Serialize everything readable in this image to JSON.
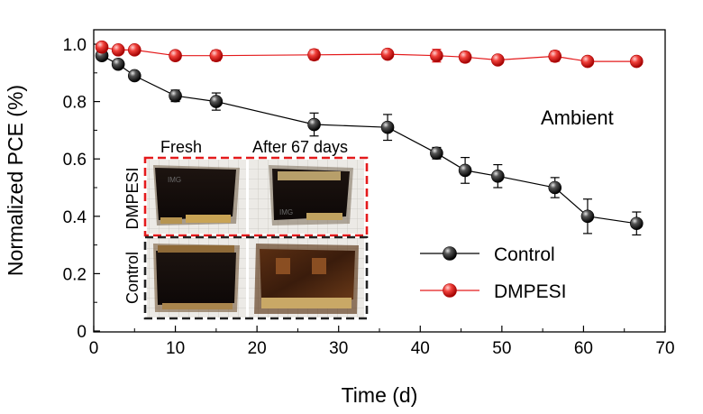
{
  "chart_data": {
    "type": "scatter",
    "xlabel": "Time (d)",
    "ylabel": "Normalized PCE (%)",
    "xlim": [
      0,
      70
    ],
    "ylim": [
      0,
      1.0
    ],
    "x_ticks": [
      "0",
      "10",
      "20",
      "30",
      "40",
      "50",
      "60",
      "70"
    ],
    "y_ticks": [
      "0",
      "0.2",
      "0.4",
      "0.6",
      "0.8",
      "1.0"
    ],
    "annotation": "Ambient",
    "legend_position": "lower-right",
    "grid": false,
    "series": [
      {
        "name": "Control",
        "color": "#000000",
        "x": [
          1,
          3,
          5,
          10,
          15,
          27,
          36,
          42,
          45.5,
          49.5,
          56.5,
          60.5,
          66.5
        ],
        "y": [
          0.96,
          0.93,
          0.89,
          0.82,
          0.8,
          0.72,
          0.71,
          0.62,
          0.56,
          0.54,
          0.5,
          0.4,
          0.375
        ],
        "err": [
          0.01,
          0.01,
          0.01,
          0.02,
          0.03,
          0.04,
          0.045,
          0.02,
          0.045,
          0.04,
          0.035,
          0.06,
          0.04
        ]
      },
      {
        "name": "DMPESI",
        "color": "#e41a1c",
        "x": [
          1,
          3,
          5,
          10,
          15,
          27,
          36,
          42,
          45.5,
          49.5,
          56.5,
          60.5,
          66.5
        ],
        "y": [
          0.99,
          0.98,
          0.98,
          0.96,
          0.96,
          0.963,
          0.965,
          0.96,
          0.955,
          0.945,
          0.958,
          0.94,
          0.94
        ],
        "err": [
          0.01,
          0.01,
          0.01,
          0.01,
          0.018,
          0.018,
          0.015,
          0.022,
          0.017,
          0.013,
          0.018,
          0.012,
          0.012
        ]
      }
    ],
    "inset": {
      "column_labels": [
        "Fresh",
        "After 67 days"
      ],
      "row_labels": [
        "DMPESI",
        "Control"
      ],
      "photo_watermark": "IMG"
    }
  },
  "colors": {
    "dmpesi": "#e41a1c",
    "control": "#000000",
    "inset_dmpesi_border": "#e41a1c",
    "inset_control_border": "#222222"
  }
}
